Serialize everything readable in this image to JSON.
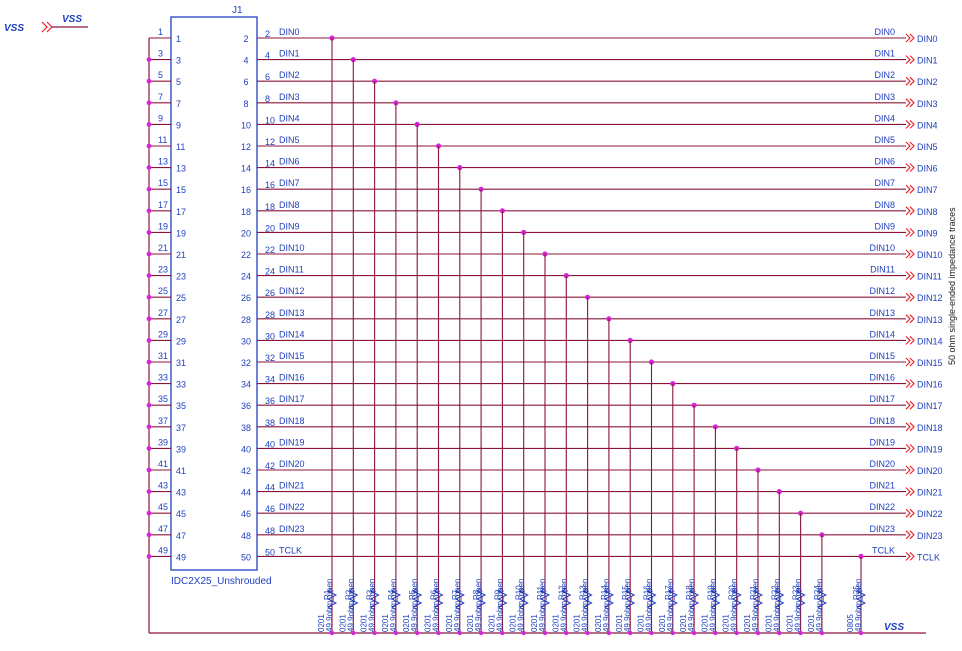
{
  "power": {
    "vss_label": "VSS",
    "vss_net_label": "VSS",
    "vss_bottom_label": "VSS"
  },
  "connector": {
    "designator": "J1",
    "part_name": "IDC2X25_Unshrouded",
    "odd_pins": [
      "1",
      "3",
      "5",
      "7",
      "9",
      "11",
      "13",
      "15",
      "17",
      "19",
      "21",
      "23",
      "25",
      "27",
      "29",
      "31",
      "33",
      "35",
      "37",
      "39",
      "41",
      "43",
      "45",
      "47",
      "49"
    ],
    "even_pins": [
      "2",
      "4",
      "6",
      "8",
      "10",
      "12",
      "14",
      "16",
      "18",
      "20",
      "22",
      "24",
      "26",
      "28",
      "30",
      "32",
      "34",
      "36",
      "38",
      "40",
      "42",
      "44",
      "46",
      "48",
      "50"
    ]
  },
  "signals": [
    "DIN0",
    "DIN1",
    "DIN2",
    "DIN3",
    "DIN4",
    "DIN5",
    "DIN6",
    "DIN7",
    "DIN8",
    "DIN9",
    "DIN10",
    "DIN11",
    "DIN12",
    "DIN13",
    "DIN14",
    "DIN15",
    "DIN16",
    "DIN17",
    "DIN18",
    "DIN19",
    "DIN20",
    "DIN21",
    "DIN22",
    "DIN23",
    "TCLK"
  ],
  "resistors": [
    {
      "ref": "R1",
      "value": "49.9ohm_open",
      "pkg": "0201"
    },
    {
      "ref": "R2",
      "value": "49.9ohm_open",
      "pkg": "0201"
    },
    {
      "ref": "R3",
      "value": "49.9ohm_open",
      "pkg": "0201"
    },
    {
      "ref": "R4",
      "value": "49.9ohm_open",
      "pkg": "0201"
    },
    {
      "ref": "R5",
      "value": "49.9ohm_open",
      "pkg": "0201"
    },
    {
      "ref": "R6",
      "value": "49.9ohm_open",
      "pkg": "0201"
    },
    {
      "ref": "R7",
      "value": "49.9ohm_open",
      "pkg": "0201"
    },
    {
      "ref": "R8",
      "value": "49.9ohm_open",
      "pkg": "0201"
    },
    {
      "ref": "R9",
      "value": "49.9ohm_open",
      "pkg": "0201"
    },
    {
      "ref": "R10",
      "value": "49.9ohm_open",
      "pkg": "0201"
    },
    {
      "ref": "R11",
      "value": "49.9ohm_open",
      "pkg": "0201"
    },
    {
      "ref": "R12",
      "value": "49.9ohm_open",
      "pkg": "0201"
    },
    {
      "ref": "R13",
      "value": "49.9ohm_open",
      "pkg": "0201"
    },
    {
      "ref": "R14",
      "value": "49.9ohm_open",
      "pkg": "0201"
    },
    {
      "ref": "R15",
      "value": "49.9ohm_open",
      "pkg": "0201"
    },
    {
      "ref": "R16",
      "value": "49.9ohm_open",
      "pkg": "0201"
    },
    {
      "ref": "R17",
      "value": "49.9ohm_open",
      "pkg": "0201"
    },
    {
      "ref": "R18",
      "value": "49.9ohm_open",
      "pkg": "0201"
    },
    {
      "ref": "R19",
      "value": "49.9ohm_open",
      "pkg": "0201"
    },
    {
      "ref": "R20",
      "value": "49.9ohm_open",
      "pkg": "0201"
    },
    {
      "ref": "R21",
      "value": "49.9ohm_open",
      "pkg": "0201"
    },
    {
      "ref": "R22",
      "value": "49.9ohm_open",
      "pkg": "0201"
    },
    {
      "ref": "R23",
      "value": "49.9ohm_open",
      "pkg": "0201"
    },
    {
      "ref": "R24",
      "value": "49.9ohm_open",
      "pkg": "0201"
    },
    {
      "ref": "R25",
      "value": "49.9ohm_open",
      "pkg": "0805"
    }
  ],
  "note": "50 ohm single-ended impedance traces",
  "colors": {
    "wire": "#8b1538",
    "text": "#1f3fbf",
    "port": "#ee1c25",
    "junction": "#d726d7",
    "body": "#1f3fbf"
  }
}
